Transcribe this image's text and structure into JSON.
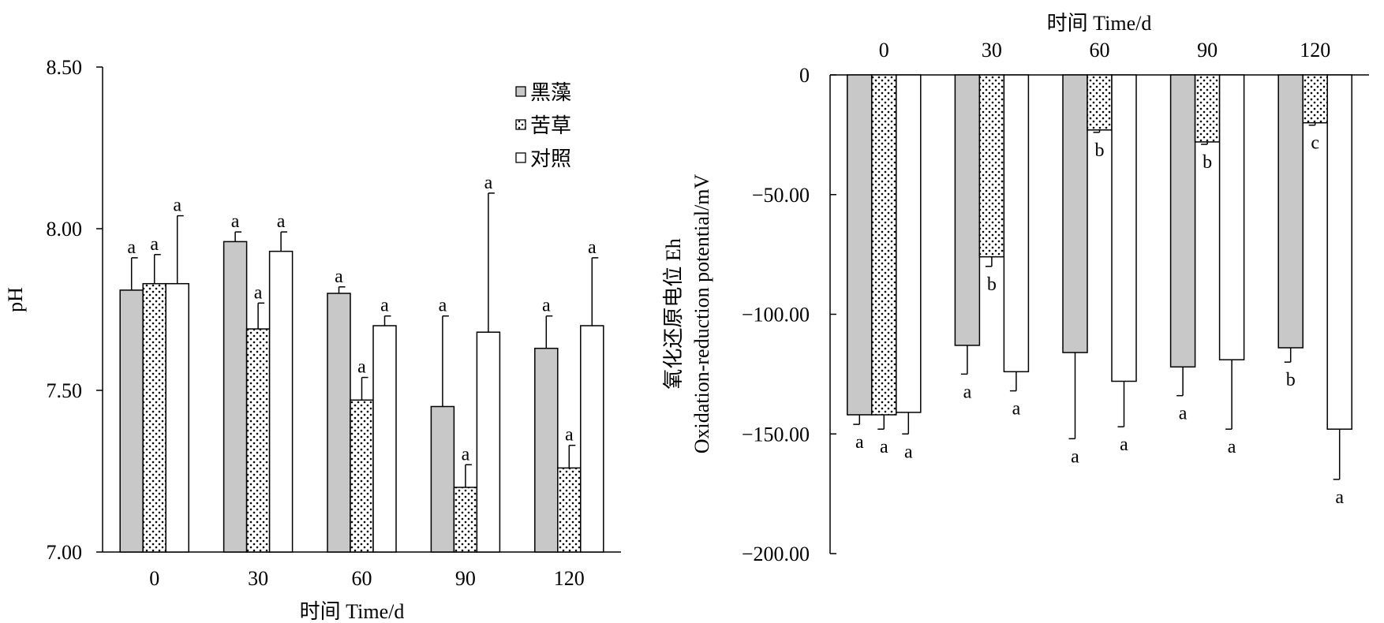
{
  "legend": [
    {
      "name": "黑藻",
      "pattern": "gray"
    },
    {
      "name": "苦草",
      "pattern": "dots"
    },
    {
      "name": "对照",
      "pattern": "white"
    }
  ],
  "colors": {
    "gray_fill": "#c8c8c8",
    "white_fill": "#ffffff",
    "line": "#000000"
  },
  "chart_data": [
    {
      "type": "bar",
      "xlabel": "时间 Time/d",
      "ylabel": "pH",
      "ylim": [
        7.0,
        8.5
      ],
      "yticks": [
        "7.00",
        "7.50",
        "8.00",
        "8.50"
      ],
      "categories": [
        "0",
        "30",
        "60",
        "90",
        "120"
      ],
      "legend_position": "top-right",
      "series": [
        {
          "name": "黑藻",
          "values": [
            7.81,
            7.96,
            7.8,
            7.45,
            7.63
          ],
          "errors": [
            0.1,
            0.03,
            0.02,
            0.28,
            0.1
          ],
          "labels": [
            "a",
            "a",
            "a",
            "a",
            "a"
          ]
        },
        {
          "name": "苦草",
          "values": [
            7.83,
            7.69,
            7.47,
            7.2,
            7.26
          ],
          "errors": [
            0.09,
            0.08,
            0.07,
            0.07,
            0.07
          ],
          "labels": [
            "a",
            "a",
            "a",
            "a",
            "a"
          ]
        },
        {
          "name": "对照",
          "values": [
            7.83,
            7.93,
            7.7,
            7.68,
            7.7
          ],
          "errors": [
            0.21,
            0.06,
            0.03,
            0.43,
            0.21
          ],
          "labels": [
            "a",
            "a",
            "a",
            "a",
            "a"
          ]
        }
      ]
    },
    {
      "type": "bar",
      "xlabel": "时间 Time/d",
      "xaxis_position": "top",
      "ylabel": [
        "氧化还原电位 Eh",
        "Oxidation-reduction potential/mV"
      ],
      "ylim": [
        -200,
        0
      ],
      "yticks": [
        "0",
        "−50.00",
        "−100.00",
        "−150.00",
        "−200.00"
      ],
      "categories": [
        "0",
        "30",
        "60",
        "90",
        "120"
      ],
      "series": [
        {
          "name": "黑藻",
          "values": [
            -142,
            -113,
            -116,
            -122,
            -114
          ],
          "errors": [
            4,
            12,
            36,
            12,
            6
          ],
          "labels": [
            "a",
            "a",
            "a",
            "a",
            "b"
          ]
        },
        {
          "name": "苦草",
          "values": [
            -142,
            -76,
            -23,
            -28,
            -20
          ],
          "errors": [
            6,
            4,
            1,
            1,
            1
          ],
          "labels": [
            "a",
            "b",
            "b",
            "b",
            "c"
          ]
        },
        {
          "name": "对照",
          "values": [
            -141,
            -124,
            -128,
            -119,
            -148
          ],
          "errors": [
            9,
            8,
            19,
            29,
            21
          ],
          "labels": [
            "a",
            "a",
            "a",
            "a",
            "a"
          ]
        }
      ]
    }
  ]
}
